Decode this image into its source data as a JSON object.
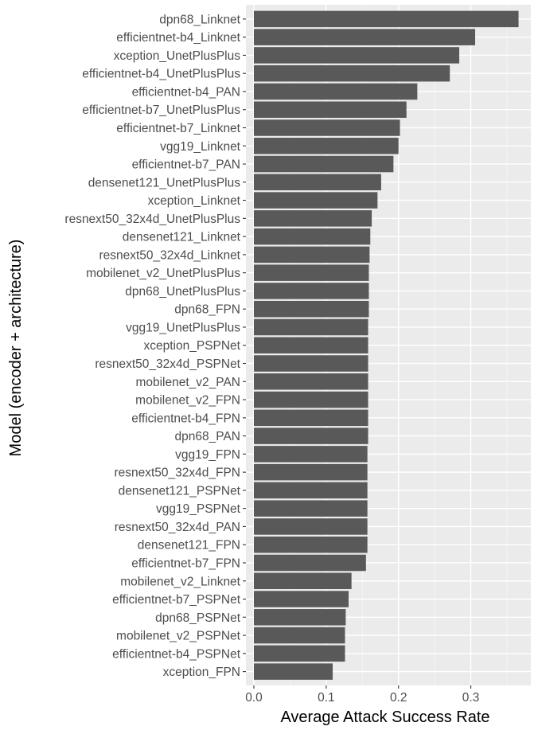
{
  "chart_data": {
    "type": "bar",
    "orientation": "horizontal",
    "xlabel": "Average Attack Success Rate",
    "ylabel": "Model (encoder + architecture)",
    "xlim": [
      0,
      0.38
    ],
    "x_ticks": [
      0.0,
      0.1,
      0.2,
      0.3
    ],
    "x_tick_labels": [
      "0.0",
      "0.1",
      "0.2",
      "0.3"
    ],
    "grid": true,
    "colors": {
      "bar": "#595959",
      "panel": "#ebebeb",
      "grid_major": "#ffffff"
    },
    "categories": [
      "dpn68_Linknet",
      "efficientnet-b4_Linknet",
      "xception_UnetPlusPlus",
      "efficientnet-b4_UnetPlusPlus",
      "efficientnet-b4_PAN",
      "efficientnet-b7_UnetPlusPlus",
      "efficientnet-b7_Linknet",
      "vgg19_Linknet",
      "efficientnet-b7_PAN",
      "densenet121_UnetPlusPlus",
      "xception_Linknet",
      "resnext50_32x4d_UnetPlusPlus",
      "densenet121_Linknet",
      "resnext50_32x4d_Linknet",
      "mobilenet_v2_UnetPlusPlus",
      "dpn68_UnetPlusPlus",
      "dpn68_FPN",
      "vgg19_UnetPlusPlus",
      "xception_PSPNet",
      "resnext50_32x4d_PSPNet",
      "mobilenet_v2_PAN",
      "mobilenet_v2_FPN",
      "efficientnet-b4_FPN",
      "dpn68_PAN",
      "vgg19_FPN",
      "resnext50_32x4d_FPN",
      "densenet121_PSPNet",
      "vgg19_PSPNet",
      "resnext50_32x4d_PAN",
      "densenet121_FPN",
      "efficientnet-b7_FPN",
      "mobilenet_v2_Linknet",
      "efficientnet-b7_PSPNet",
      "dpn68_PSPNet",
      "mobilenet_v2_PSPNet",
      "efficientnet-b4_PSPNet",
      "xception_FPN"
    ],
    "values": [
      0.366,
      0.306,
      0.284,
      0.271,
      0.226,
      0.211,
      0.202,
      0.2,
      0.193,
      0.176,
      0.171,
      0.163,
      0.161,
      0.16,
      0.159,
      0.159,
      0.159,
      0.158,
      0.158,
      0.158,
      0.158,
      0.158,
      0.158,
      0.158,
      0.157,
      0.157,
      0.157,
      0.157,
      0.157,
      0.157,
      0.155,
      0.135,
      0.131,
      0.127,
      0.126,
      0.126,
      0.109
    ]
  }
}
